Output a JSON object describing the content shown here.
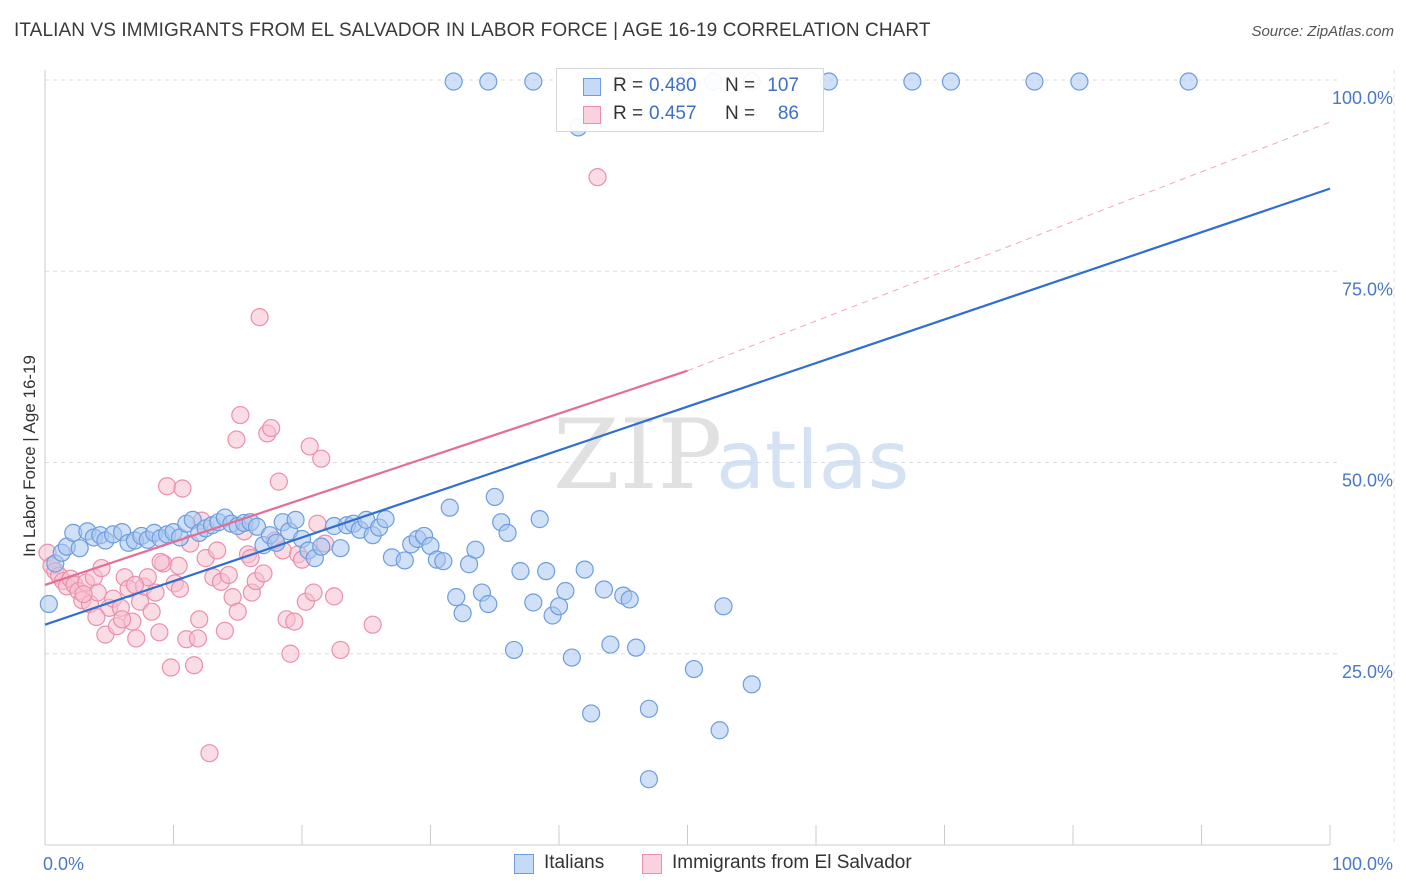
{
  "header": {
    "title": "ITALIAN VS IMMIGRANTS FROM EL SALVADOR IN LABOR FORCE | AGE 16-19 CORRELATION CHART",
    "source": "Source: ZipAtlas.com"
  },
  "watermark": {
    "zip": "ZIP",
    "atlas": "atlas"
  },
  "legend": {
    "rows": [
      {
        "r_label": "R =",
        "r_value": "0.480",
        "n_label": "N =",
        "n_value": "107"
      },
      {
        "r_label": "R =",
        "r_value": "0.457",
        "n_label": "N =",
        "n_value": "86"
      }
    ]
  },
  "bottom_legend": {
    "items": [
      "Italians",
      "Immigrants from El Salvador"
    ]
  },
  "colors": {
    "blue_fill": "#a9c6ee",
    "blue_stroke": "#6d9de0",
    "blue_line": "#2f6fcf",
    "pink_fill": "#f6bfd0",
    "pink_stroke": "#ec8fac",
    "pink_line": "#e46d93",
    "grid": "#dddddd",
    "tick_label": "#4a78c9"
  },
  "chart_data": {
    "type": "scatter",
    "ylabel": "In Labor Force | Age 16-19",
    "xlim": [
      0,
      100
    ],
    "ylim": [
      0,
      102
    ],
    "x_tick_labels": [
      {
        "value": 0,
        "label": "0.0%"
      },
      {
        "value": 100,
        "label": "100.0%"
      }
    ],
    "y_tick_labels": [
      {
        "value": 25,
        "label": "25.0%"
      },
      {
        "value": 50,
        "label": "50.0%"
      },
      {
        "value": 75,
        "label": "75.0%"
      },
      {
        "value": 100,
        "label": "100.0%"
      }
    ],
    "grid": true,
    "series": [
      {
        "name": "Italians",
        "color_key": "blue",
        "regression": {
          "r": 0.48,
          "n": 107,
          "x0": 0,
          "y0": 28.8,
          "x1": 100,
          "y1": 85.8
        },
        "points": [
          [
            0.3,
            31.5
          ],
          [
            0.8,
            36.8
          ],
          [
            1.3,
            38.2
          ],
          [
            1.7,
            39.0
          ],
          [
            2.2,
            40.8
          ],
          [
            2.7,
            38.8
          ],
          [
            3.3,
            41.0
          ],
          [
            3.8,
            40.2
          ],
          [
            4.3,
            40.5
          ],
          [
            4.7,
            39.8
          ],
          [
            5.3,
            40.6
          ],
          [
            6.0,
            40.9
          ],
          [
            6.5,
            39.5
          ],
          [
            7.0,
            39.8
          ],
          [
            7.5,
            40.4
          ],
          [
            8.0,
            39.9
          ],
          [
            8.5,
            40.8
          ],
          [
            9.0,
            40.1
          ],
          [
            9.5,
            40.6
          ],
          [
            10.0,
            40.9
          ],
          [
            10.5,
            40.2
          ],
          [
            11.0,
            42.0
          ],
          [
            11.5,
            42.5
          ],
          [
            12.0,
            40.8
          ],
          [
            12.5,
            41.4
          ],
          [
            13.0,
            41.8
          ],
          [
            13.5,
            42.2
          ],
          [
            14.0,
            42.8
          ],
          [
            14.5,
            42.0
          ],
          [
            15.0,
            41.7
          ],
          [
            15.5,
            42.1
          ],
          [
            16.0,
            42.2
          ],
          [
            16.5,
            41.6
          ],
          [
            17.0,
            39.2
          ],
          [
            17.5,
            40.5
          ],
          [
            18.0,
            39.5
          ],
          [
            18.5,
            42.2
          ],
          [
            19.0,
            41.0
          ],
          [
            19.5,
            42.5
          ],
          [
            20.0,
            40.0
          ],
          [
            20.5,
            38.5
          ],
          [
            21.0,
            37.5
          ],
          [
            21.5,
            39.0
          ],
          [
            22.5,
            41.7
          ],
          [
            23.0,
            38.8
          ],
          [
            23.5,
            41.8
          ],
          [
            24.0,
            42.0
          ],
          [
            24.5,
            41.2
          ],
          [
            25.0,
            42.5
          ],
          [
            25.5,
            40.5
          ],
          [
            26.0,
            41.5
          ],
          [
            26.5,
            42.6
          ],
          [
            27.0,
            37.6
          ],
          [
            28.0,
            37.2
          ],
          [
            28.5,
            39.3
          ],
          [
            29.0,
            40.0
          ],
          [
            29.5,
            40.4
          ],
          [
            30.0,
            39.1
          ],
          [
            30.5,
            37.3
          ],
          [
            31.0,
            37.1
          ],
          [
            31.5,
            44.1
          ],
          [
            32.0,
            32.4
          ],
          [
            32.5,
            30.3
          ],
          [
            33.0,
            36.7
          ],
          [
            33.5,
            38.6
          ],
          [
            34.0,
            33.0
          ],
          [
            34.5,
            31.5
          ],
          [
            35.0,
            45.5
          ],
          [
            35.5,
            42.2
          ],
          [
            36.0,
            40.8
          ],
          [
            36.5,
            25.5
          ],
          [
            37.0,
            35.8
          ],
          [
            38.0,
            31.7
          ],
          [
            38.5,
            42.6
          ],
          [
            39.0,
            35.8
          ],
          [
            39.5,
            30.0
          ],
          [
            40.0,
            31.2
          ],
          [
            40.5,
            33.2
          ],
          [
            41.0,
            24.5
          ],
          [
            42.0,
            36.0
          ],
          [
            42.5,
            17.2
          ],
          [
            43.5,
            33.4
          ],
          [
            44.0,
            26.2
          ],
          [
            45.0,
            32.6
          ],
          [
            45.5,
            32.1
          ],
          [
            46.0,
            25.8
          ],
          [
            47.0,
            8.6
          ],
          [
            47.0,
            17.8
          ],
          [
            50.5,
            23.0
          ],
          [
            52.5,
            15.0
          ],
          [
            52.8,
            31.2
          ],
          [
            55.0,
            21.0
          ],
          [
            41.5,
            93.8
          ],
          [
            42.5,
            99.8
          ],
          [
            45.0,
            99.8
          ],
          [
            50.0,
            99.8
          ],
          [
            52.0,
            99.8
          ],
          [
            55.0,
            99.8
          ],
          [
            61.0,
            99.8
          ],
          [
            67.5,
            99.8
          ],
          [
            70.5,
            99.8
          ],
          [
            77.0,
            99.8
          ],
          [
            80.5,
            99.8
          ],
          [
            89.0,
            99.8
          ],
          [
            31.8,
            99.8
          ],
          [
            34.5,
            99.8
          ],
          [
            38.0,
            99.8
          ]
        ]
      },
      {
        "name": "Immigrants from El Salvador",
        "color_key": "pink",
        "regression": {
          "r": 0.457,
          "n": 86,
          "x0": 0,
          "y0": 34.0,
          "x1": 50,
          "y1": 62.0,
          "dash_x1": 100,
          "dash_y1": 94.5
        },
        "points": [
          [
            0.2,
            38.2
          ],
          [
            0.5,
            36.5
          ],
          [
            0.8,
            35.8
          ],
          [
            1.1,
            35.2
          ],
          [
            1.4,
            34.5
          ],
          [
            1.7,
            33.8
          ],
          [
            2.0,
            34.8
          ],
          [
            2.3,
            34.0
          ],
          [
            2.6,
            33.2
          ],
          [
            2.9,
            32.0
          ],
          [
            3.2,
            34.3
          ],
          [
            3.5,
            31.5
          ],
          [
            3.8,
            35.0
          ],
          [
            4.1,
            33.0
          ],
          [
            4.4,
            36.2
          ],
          [
            4.7,
            27.5
          ],
          [
            5.0,
            31.0
          ],
          [
            5.3,
            32.2
          ],
          [
            5.6,
            28.6
          ],
          [
            5.9,
            31.0
          ],
          [
            6.2,
            35.0
          ],
          [
            6.5,
            33.5
          ],
          [
            6.8,
            29.2
          ],
          [
            7.1,
            27.0
          ],
          [
            7.4,
            31.8
          ],
          [
            7.7,
            33.8
          ],
          [
            8.0,
            35.0
          ],
          [
            8.3,
            30.5
          ],
          [
            8.6,
            33.0
          ],
          [
            8.9,
            27.8
          ],
          [
            9.2,
            36.8
          ],
          [
            9.5,
            46.9
          ],
          [
            9.8,
            23.2
          ],
          [
            10.1,
            34.2
          ],
          [
            10.4,
            36.5
          ],
          [
            10.7,
            46.6
          ],
          [
            11.0,
            26.9
          ],
          [
            11.3,
            39.4
          ],
          [
            11.6,
            23.5
          ],
          [
            11.9,
            27.0
          ],
          [
            12.2,
            42.4
          ],
          [
            12.5,
            37.5
          ],
          [
            12.8,
            12.0
          ],
          [
            13.1,
            35.0
          ],
          [
            13.4,
            38.5
          ],
          [
            13.7,
            34.4
          ],
          [
            14.0,
            28.0
          ],
          [
            14.3,
            35.3
          ],
          [
            14.6,
            32.4
          ],
          [
            14.9,
            53.0
          ],
          [
            15.2,
            56.2
          ],
          [
            15.5,
            41.0
          ],
          [
            15.8,
            38.0
          ],
          [
            16.1,
            33.0
          ],
          [
            16.4,
            34.5
          ],
          [
            16.7,
            69.0
          ],
          [
            17.0,
            35.5
          ],
          [
            17.3,
            53.8
          ],
          [
            17.6,
            54.5
          ],
          [
            17.9,
            39.8
          ],
          [
            18.2,
            47.5
          ],
          [
            18.5,
            38.5
          ],
          [
            18.8,
            29.5
          ],
          [
            19.1,
            25.0
          ],
          [
            19.4,
            29.2
          ],
          [
            19.7,
            38.0
          ],
          [
            20.0,
            37.3
          ],
          [
            20.3,
            31.8
          ],
          [
            20.6,
            52.1
          ],
          [
            20.9,
            33.0
          ],
          [
            21.2,
            42.0
          ],
          [
            21.5,
            50.5
          ],
          [
            21.8,
            39.4
          ],
          [
            23.0,
            25.5
          ],
          [
            25.5,
            28.8
          ],
          [
            43.0,
            87.3
          ],
          [
            3.0,
            32.8
          ],
          [
            6.0,
            29.5
          ],
          [
            9.0,
            37.0
          ],
          [
            12.0,
            29.5
          ],
          [
            15.0,
            30.5
          ],
          [
            4.0,
            29.8
          ],
          [
            7.0,
            34.0
          ],
          [
            10.5,
            33.5
          ],
          [
            16.0,
            37.5
          ],
          [
            22.5,
            32.5
          ]
        ]
      }
    ]
  }
}
